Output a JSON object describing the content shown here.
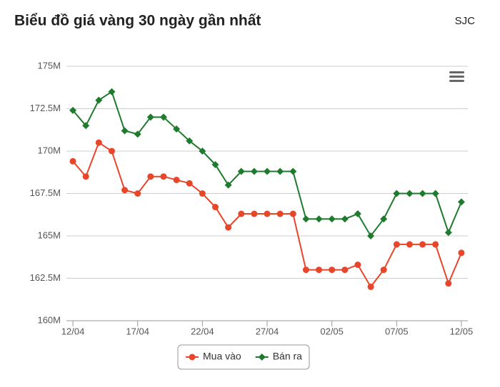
{
  "chart_data": {
    "type": "line",
    "title": "Biểu đồ giá vàng 30 ngày gần nhất",
    "subtitle": "SJC",
    "categories": [
      "12/04",
      null,
      null,
      null,
      null,
      "17/04",
      null,
      null,
      null,
      null,
      "22/04",
      null,
      null,
      null,
      null,
      "27/04",
      null,
      null,
      null,
      null,
      "02/05",
      null,
      null,
      null,
      null,
      "07/05",
      null,
      null,
      null,
      null,
      "12/05"
    ],
    "series": [
      {
        "name": "Mua vào",
        "color": "#e8462a",
        "marker": "circle",
        "values": [
          169400000,
          168500000,
          170500000,
          170000000,
          167700000,
          167500000,
          168500000,
          168500000,
          168300000,
          168100000,
          167500000,
          166700000,
          165500000,
          166300000,
          166300000,
          166300000,
          166300000,
          166300000,
          163000000,
          163000000,
          163000000,
          163000000,
          163300000,
          162000000,
          163000000,
          164500000,
          164500000,
          164500000,
          164500000,
          162200000,
          164000000
        ]
      },
      {
        "name": "Bán ra",
        "color": "#1e7b2e",
        "marker": "diamond",
        "values": [
          172400000,
          171500000,
          173000000,
          173500000,
          171200000,
          171000000,
          172000000,
          172000000,
          171300000,
          170600000,
          170000000,
          169200000,
          168000000,
          168800000,
          168800000,
          168800000,
          168800000,
          168800000,
          166000000,
          166000000,
          166000000,
          166000000,
          166300000,
          165000000,
          166000000,
          167500000,
          167500000,
          167500000,
          167500000,
          165200000,
          167000000
        ]
      }
    ],
    "ylim": [
      160000000,
      175000000
    ],
    "yticks": [
      {
        "value": 160000000,
        "label": "160M"
      },
      {
        "value": 162500000,
        "label": "162.5M"
      },
      {
        "value": 165000000,
        "label": "165M"
      },
      {
        "value": 167500000,
        "label": "167.5M"
      },
      {
        "value": 170000000,
        "label": "170M"
      },
      {
        "value": 172500000,
        "label": "172.5M"
      },
      {
        "value": 175000000,
        "label": "175M"
      }
    ],
    "grid": true
  }
}
